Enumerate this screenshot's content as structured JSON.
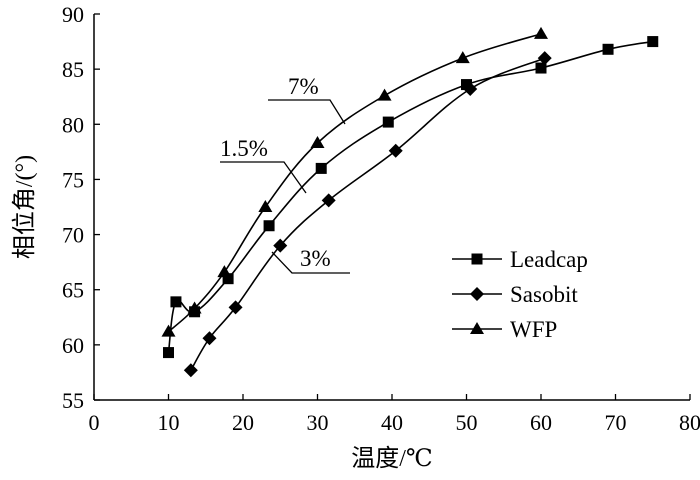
{
  "chart_data": {
    "type": "line",
    "title": "",
    "xlabel": "温度/℃",
    "ylabel": "相位角/(°)",
    "xlim": [
      0,
      80
    ],
    "ylim": [
      55,
      90
    ],
    "xticks": [
      0,
      10,
      20,
      30,
      40,
      50,
      60,
      70,
      80
    ],
    "yticks": [
      55,
      60,
      65,
      70,
      75,
      80,
      85,
      90
    ],
    "grid": false,
    "legend_position": "bottom-right",
    "series": [
      {
        "name": "Leadcap",
        "marker": "square",
        "x": [
          10,
          11,
          13.5,
          18,
          23.5,
          30.5,
          39.5,
          50,
          60,
          69,
          75
        ],
        "y": [
          59.3,
          63.9,
          63,
          66,
          70.8,
          76,
          80.2,
          83.6,
          85.1,
          86.8,
          87.5
        ]
      },
      {
        "name": "Sasobit",
        "marker": "diamond",
        "x": [
          13,
          15.5,
          19,
          25,
          31.5,
          40.5,
          50.5,
          60.5
        ],
        "y": [
          57.7,
          60.6,
          63.4,
          69,
          73.1,
          77.6,
          83.2,
          86
        ]
      },
      {
        "name": "WFP",
        "marker": "triangle",
        "x": [
          10,
          13.5,
          17.5,
          23,
          30,
          39,
          49.5,
          60
        ],
        "y": [
          61.2,
          63.3,
          66.6,
          72.5,
          78.3,
          82.6,
          86,
          88.2
        ]
      }
    ],
    "annotations": [
      {
        "text": "7%",
        "series": "WFP"
      },
      {
        "text": "1.5%",
        "series": "Leadcap"
      },
      {
        "text": "3%",
        "series": "Sasobit"
      }
    ]
  }
}
